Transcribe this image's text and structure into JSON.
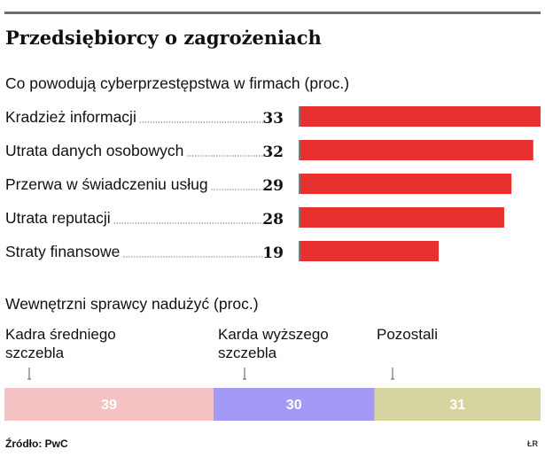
{
  "header": {
    "title": "Przedsiębiorcy o zagrożeniach",
    "source": "Źródło: PwC",
    "credit": "ŁR"
  },
  "colors": {
    "bar": "#e8302e",
    "stack": [
      "#f4c2c2",
      "#a599f7",
      "#d6d5a2"
    ],
    "stack_text": "#ffffff",
    "dots": "#666666"
  },
  "chart_data": [
    {
      "type": "bar",
      "orientation": "horizontal",
      "title": "Co powodują cyberprzestępstwa w firmach (proc.)",
      "categories": [
        "Kradzież informacji",
        "Utrata danych osobowych",
        "Przerwa w świadczeniu usług",
        "Utrata reputacji",
        "Straty finansowe"
      ],
      "values": [
        33,
        32,
        29,
        28,
        19
      ],
      "xlim": [
        0,
        33
      ],
      "grid": false,
      "legend": "none"
    },
    {
      "type": "bar",
      "orientation": "stacked-horizontal",
      "title": "Wewnętrzni sprawcy nadużyć (proc.)",
      "categories": [
        "Kadra średniego szczebla",
        "Karda wyższego szczebla",
        "Pozostali"
      ],
      "labels": [
        "Kadra średniego\nszczebla",
        "Karda wyższego\nszczebla",
        "Pozostali"
      ],
      "values": [
        39,
        30,
        31
      ],
      "grid": false,
      "legend": "none"
    }
  ]
}
